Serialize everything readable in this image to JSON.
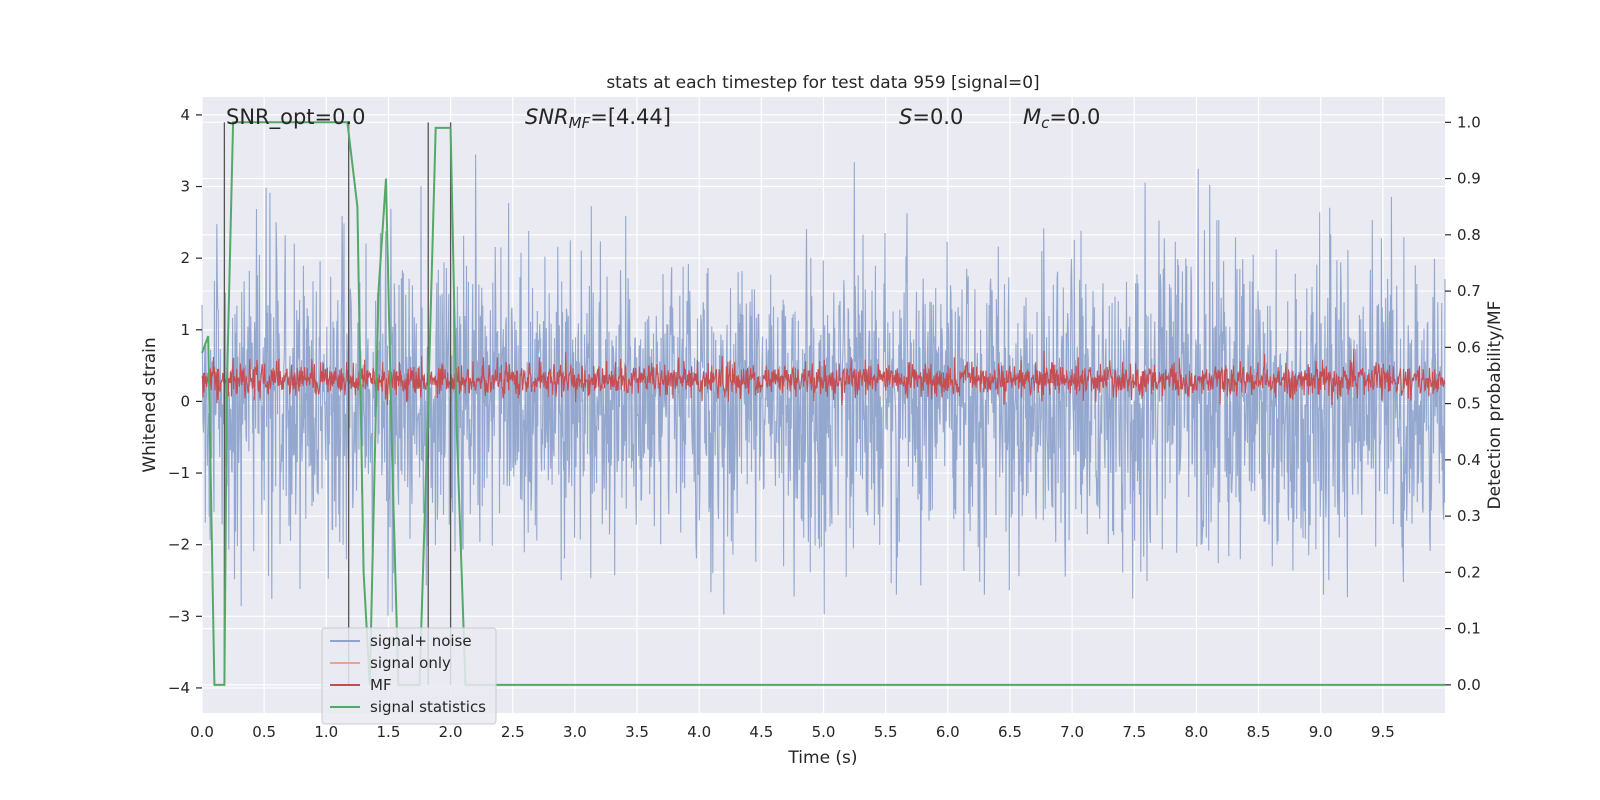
{
  "chart_data": {
    "type": "line",
    "title": "stats at each timestep for test data 959 [signal=0]",
    "xlabel": "Time (s)",
    "ylabel_left": "Whitened strain",
    "ylabel_right": "Detection probability/MF",
    "xlim": [
      0,
      10
    ],
    "ylim_left": [
      -4.35,
      4.25
    ],
    "ylim_right": [
      -0.05,
      1.045
    ],
    "x_ticks": [
      0.0,
      0.5,
      1.0,
      1.5,
      2.0,
      2.5,
      3.0,
      3.5,
      4.0,
      4.5,
      5.0,
      5.5,
      6.0,
      6.5,
      7.0,
      7.5,
      8.0,
      8.5,
      9.0,
      9.5
    ],
    "x_tick_labels": [
      "0.0",
      "0.5",
      "1.0",
      "1.5",
      "2.0",
      "2.5",
      "3.0",
      "3.5",
      "4.0",
      "4.5",
      "5.0",
      "5.5",
      "6.0",
      "6.5",
      "7.0",
      "7.5",
      "8.0",
      "8.5",
      "9.0",
      "9.5"
    ],
    "y_ticks_left": [
      -4,
      -3,
      -2,
      -1,
      0,
      1,
      2,
      3,
      4
    ],
    "y_tick_labels_left": [
      "−4",
      "−3",
      "−2",
      "−1",
      "0",
      "1",
      "2",
      "3",
      "4"
    ],
    "y_ticks_right": [
      0.0,
      0.1,
      0.2,
      0.3,
      0.4,
      0.5,
      0.6,
      0.7,
      0.8,
      0.9,
      1.0
    ],
    "y_tick_labels_right": [
      "0.0",
      "0.1",
      "0.2",
      "0.3",
      "0.4",
      "0.5",
      "0.6",
      "0.7",
      "0.8",
      "0.9",
      "1.0"
    ],
    "grid": true,
    "legend_placement": "lower-left",
    "annotations": {
      "snr_opt": "SNR_opt=0.0",
      "snr_mf_symbol": "SNR",
      "snr_mf_sub": "MF",
      "snr_mf_value": "=[4.44]",
      "s_symbol": "S",
      "s_value": "=0.0",
      "mc_symbol": "M",
      "mc_sub": "c",
      "mc_value": "=0.0"
    },
    "vertical_markers_x": [
      0.18,
      1.18,
      1.82,
      2.0
    ],
    "series": [
      {
        "name": "signal+ noise",
        "color": "#8fa4cc",
        "axis": "left",
        "description": "whitened strain noise, approx Gaussian, std ~1.05, spanning about -4.05 to 3.9",
        "amplitude_range": [
          -4.05,
          3.9
        ]
      },
      {
        "name": "signal only",
        "color": "#e8a58a",
        "axis": "left",
        "values": []
      },
      {
        "name": "MF",
        "color": "#c44e52",
        "axis": "left",
        "description": "matched filter output, fluctuating about 0.3 with range roughly 0 to 1.0",
        "amplitude_range": [
          -0.05,
          1.0
        ]
      },
      {
        "name": "signal statistics",
        "color": "#55a868",
        "axis": "right",
        "x": [
          0.0,
          0.05,
          0.1,
          0.12,
          0.18,
          0.2,
          0.25,
          1.17,
          1.25,
          1.3,
          1.35,
          1.42,
          1.48,
          1.53,
          1.58,
          1.75,
          1.82,
          1.88,
          2.0,
          2.05,
          2.12,
          2.2,
          10.0
        ],
        "values": [
          0.59,
          0.62,
          0.0,
          0.0,
          0.0,
          0.53,
          1.0,
          1.0,
          0.85,
          0.2,
          0.0,
          0.7,
          0.9,
          0.4,
          0.0,
          0.0,
          0.5,
          0.99,
          0.99,
          0.45,
          0.0,
          0.0,
          0.0
        ]
      }
    ]
  }
}
